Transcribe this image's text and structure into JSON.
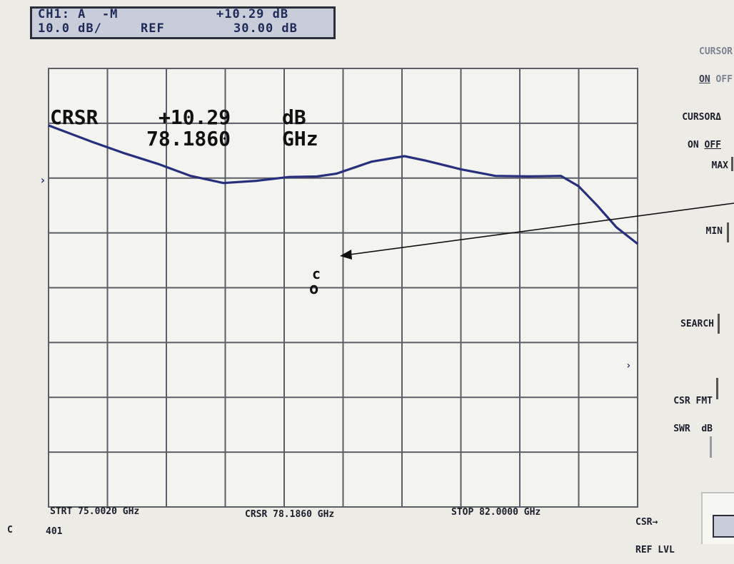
{
  "header": {
    "line1_left": "CH1: A  -M",
    "line1_right": "+10.29 dB",
    "line2_left": "10.0 dB/",
    "line2_mid": "REF",
    "line2_right": "30.00 dB"
  },
  "cursor_readout": {
    "label": "CRSR",
    "value": "+10.29",
    "unit": "dB",
    "frequency": "78.1860",
    "freq_unit": "GHz"
  },
  "cursor_marker": "c",
  "softkeys": {
    "cursor": {
      "label": "CURSOR",
      "on": "ON",
      "off": "OFF"
    },
    "cursor_delta": {
      "label": "CURSORΔ",
      "on": "ON",
      "off": "OFF"
    },
    "max": "MAX",
    "min": "MIN",
    "search": "SEARCH",
    "csr_fmt": {
      "line1": "CSR FMT",
      "line2": "SWR  dB"
    },
    "csr_ref": {
      "line1": "CSR→",
      "line2": "REF LVL"
    }
  },
  "footer": {
    "start": "STRT 75.0020 GHz",
    "cursor": "CRSR 78.1860 GHz",
    "stop": "STOP 82.0000 GHz",
    "left_code": "C",
    "model": "401"
  },
  "colors": {
    "trace": "#28307e",
    "grid": "#5c5e66",
    "paper": "#ecebe6",
    "arrow": "#111111"
  },
  "chart_data": {
    "type": "line",
    "x_start_ghz": 75.002,
    "x_stop_ghz": 82.0,
    "y_ref_db": 30.0,
    "db_per_div": 10.0,
    "grid": true,
    "series": [
      {
        "x": [
          75.002,
          75.52,
          75.91,
          76.3,
          76.69,
          77.08,
          77.47,
          77.86,
          78.19,
          78.42,
          78.84,
          79.23,
          79.48,
          79.9,
          80.31,
          80.7,
          81.09,
          81.3,
          81.52,
          81.75,
          82.0
        ],
        "y": [
          19.6,
          16.6,
          14.5,
          12.6,
          10.4,
          9.1,
          9.5,
          10.2,
          10.29,
          10.8,
          13.0,
          14.0,
          13.2,
          11.6,
          10.4,
          10.3,
          10.4,
          8.5,
          5.0,
          1.0,
          -2.0
        ]
      }
    ]
  }
}
